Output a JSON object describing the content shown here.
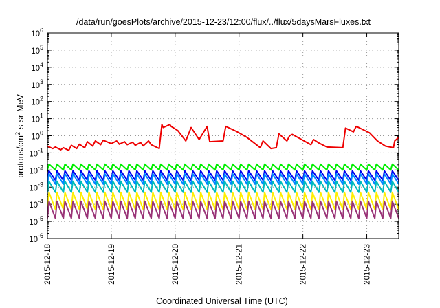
{
  "chart_data": {
    "type": "line",
    "title": "/data/run/goesPlots/archive/2015-12-23/12:00/flux/../flux/5daysMarsFluxes.txt",
    "xlabel": "Coordinated Universal Time (UTC)",
    "ylabel_parts": [
      "protons/cm",
      "2",
      "-s-sr-MeV"
    ],
    "y_scale": "log",
    "ylim": [
      1e-06,
      1000000.0
    ],
    "y_ticks": [
      {
        "value": 1e-06,
        "base": "10",
        "exp": "-6"
      },
      {
        "value": 1e-05,
        "base": "10",
        "exp": "-5"
      },
      {
        "value": 0.0001,
        "base": "10",
        "exp": "-4"
      },
      {
        "value": 0.001,
        "base": "10",
        "exp": "-3"
      },
      {
        "value": 0.01,
        "base": "10",
        "exp": "-2"
      },
      {
        "value": 0.1,
        "base": "10",
        "exp": "-1"
      },
      {
        "value": 1,
        "base": "10",
        "exp": "0"
      },
      {
        "value": 10.0,
        "base": "10",
        "exp": "1"
      },
      {
        "value": 100.0,
        "base": "10",
        "exp": "2"
      },
      {
        "value": 1000.0,
        "base": "10",
        "exp": "3"
      },
      {
        "value": 10000.0,
        "base": "10",
        "exp": "4"
      },
      {
        "value": 100000.0,
        "base": "10",
        "exp": "5"
      },
      {
        "value": 1000000.0,
        "base": "10",
        "exp": "6"
      }
    ],
    "xlim": [
      "2015-12-18 00:00",
      "2015-12-23 12:00"
    ],
    "x_ticks": [
      "2015-12-18",
      "2015-12-19",
      "2015-12-20",
      "2015-12-21",
      "2015-12-22",
      "2015-12-23"
    ],
    "grid": true,
    "series": [
      {
        "color": "#ee0000",
        "line_width": 2,
        "x": [
          "2015-12-18 00:00",
          "2015-12-18 02:00",
          "2015-12-18 03:00",
          "2015-12-18 05:00",
          "2015-12-18 06:00",
          "2015-12-18 08:00",
          "2015-12-18 09:00",
          "2015-12-18 11:00",
          "2015-12-18 12:00",
          "2015-12-18 14:00",
          "2015-12-18 15:00",
          "2015-12-18 17:00",
          "2015-12-18 18:00",
          "2015-12-18 20:00",
          "2015-12-18 21:00",
          "2015-12-19 00:00",
          "2015-12-19 02:00",
          "2015-12-19 03:00",
          "2015-12-19 05:00",
          "2015-12-19 06:00",
          "2015-12-19 08:00",
          "2015-12-19 09:00",
          "2015-12-19 11:00",
          "2015-12-19 12:00",
          "2015-12-19 14:00",
          "2015-12-19 15:00",
          "2015-12-19 18:00",
          "2015-12-19 19:00",
          "2015-12-19 19:30",
          "2015-12-19 22:00",
          "2015-12-19 22:30",
          "2015-12-20 01:00",
          "2015-12-20 04:00",
          "2015-12-20 06:00",
          "2015-12-20 09:00",
          "2015-12-20 12:00",
          "2015-12-20 13:00",
          "2015-12-20 18:00",
          "2015-12-20 19:00",
          "2015-12-20 23:00",
          "2015-12-21 03:00",
          "2015-12-21 06:00",
          "2015-12-21 08:00",
          "2015-12-21 09:00",
          "2015-12-21 12:00",
          "2015-12-21 14:00",
          "2015-12-21 15:00",
          "2015-12-21 18:00",
          "2015-12-21 19:00",
          "2015-12-21 20:00",
          "2015-12-22 00:00",
          "2015-12-22 03:00",
          "2015-12-22 04:00",
          "2015-12-22 06:00",
          "2015-12-22 09:00",
          "2015-12-22 15:00",
          "2015-12-22 16:00",
          "2015-12-22 19:00",
          "2015-12-22 20:00",
          "2015-12-22 21:00",
          "2015-12-23 01:00",
          "2015-12-23 04:00",
          "2015-12-23 07:00",
          "2015-12-23 10:00",
          "2015-12-23 10:30",
          "2015-12-23 12:00"
        ],
        "y": [
          0.25,
          0.18,
          0.22,
          0.15,
          0.2,
          0.14,
          0.28,
          0.18,
          0.32,
          0.2,
          0.45,
          0.25,
          0.5,
          0.3,
          0.55,
          0.35,
          0.5,
          0.32,
          0.45,
          0.3,
          0.42,
          0.28,
          0.4,
          0.26,
          0.5,
          0.3,
          0.18,
          4.5,
          3.0,
          4.5,
          3.5,
          2.0,
          0.5,
          3.0,
          0.6,
          3.5,
          0.45,
          0.5,
          3.5,
          1.8,
          0.8,
          0.35,
          0.2,
          0.5,
          0.18,
          0.2,
          1.3,
          0.5,
          1.0,
          1.2,
          0.55,
          0.3,
          0.6,
          0.38,
          0.22,
          0.2,
          2.8,
          1.7,
          3.5,
          3.0,
          1.5,
          0.5,
          0.25,
          0.2,
          0.5,
          0.8
        ]
      },
      {
        "color": "#00ee00",
        "line_width": 2,
        "period_hours": 3,
        "peak": 0.022,
        "trough": 0.01
      },
      {
        "color": "#0000ee",
        "line_width": 2,
        "period_hours": 3,
        "peak": 0.009,
        "trough": 0.0025
      },
      {
        "color": "#0088ff",
        "line_width": 2,
        "period_hours": 3,
        "peak": 0.006,
        "trough": 0.0015
      },
      {
        "color": "#00bbbb",
        "line_width": 2,
        "period_hours": 3,
        "peak": 0.0022,
        "trough": 0.0005
      },
      {
        "color": "#ffee00",
        "line_width": 2,
        "period_hours": 3,
        "peak": 0.0005,
        "trough": 5e-05
      },
      {
        "color": "#993377",
        "line_width": 2,
        "period_hours": 3,
        "peak": 0.00015,
        "trough": 1.5e-05
      }
    ]
  }
}
